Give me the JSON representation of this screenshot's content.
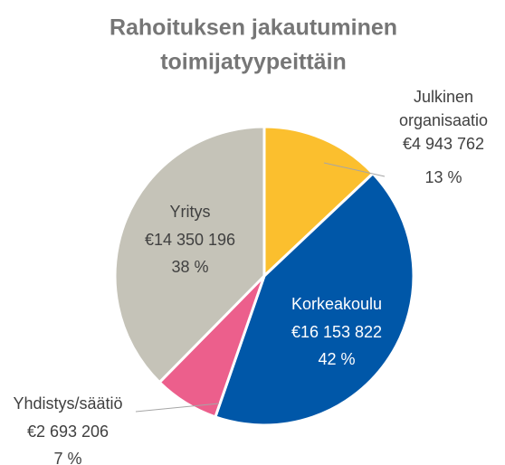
{
  "chart_data": {
    "type": "pie",
    "title": [
      "Rahoituksen jakautuminen",
      "toimijatyypeittäin"
    ],
    "categories": [
      "Julkinen organisaatio",
      "Korkeakoulu",
      "Yhdistys/säätiö",
      "Yritys"
    ],
    "values": [
      4943762,
      16153822,
      2693206,
      14350196
    ],
    "value_labels": [
      "€4 943 762",
      "€16 153 822",
      "€2 693 206",
      "€14 350 196"
    ],
    "percent_labels": [
      "13 %",
      "42 %",
      "7 %",
      "38 %"
    ],
    "colors": [
      "#fbbf2e",
      "#0057a8",
      "#ec5f8c",
      "#c5c3b8"
    ]
  }
}
